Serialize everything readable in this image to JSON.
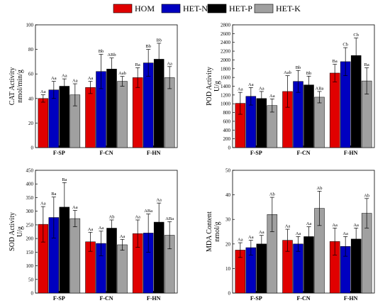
{
  "legend": [
    {
      "name": "HOM",
      "color": "#e00000"
    },
    {
      "name": "HET-N",
      "color": "#0000c0"
    },
    {
      "name": "HET-P",
      "color": "#000000"
    },
    {
      "name": "HET-K",
      "color": "#a0a0a0"
    }
  ],
  "chart_data": [
    {
      "type": "bar",
      "ylabel_lines": [
        "CAT Activity",
        "nmol/min/g"
      ],
      "categories": [
        "F-SP",
        "F-CN",
        "F-HN"
      ],
      "ylim": [
        0,
        100
      ],
      "yticks": [
        0,
        20,
        40,
        60,
        80,
        100
      ],
      "series": [
        {
          "name": "HOM",
          "values": [
            40,
            49,
            57
          ],
          "errors": [
            3,
            5,
            8
          ],
          "labels": [
            "Aa",
            "Aa",
            "Ba"
          ]
        },
        {
          "name": "HET-N",
          "values": [
            47,
            62,
            69
          ],
          "errors": [
            7,
            14,
            11
          ],
          "labels": [
            "Aa",
            "Bb",
            "Bb"
          ]
        },
        {
          "name": "HET-P",
          "values": [
            50,
            64,
            72
          ],
          "errors": [
            6,
            9,
            13
          ],
          "labels": [
            "Aa",
            "ABb",
            "Bb"
          ]
        },
        {
          "name": "HET-K",
          "values": [
            43,
            54,
            57
          ],
          "errors": [
            9,
            4,
            9
          ],
          "labels": [
            "Aa",
            "Aab",
            "Aa"
          ]
        }
      ]
    },
    {
      "type": "bar",
      "ylabel_lines": [
        "POD Activity",
        "U/g"
      ],
      "categories": [
        "F-SP",
        "F-CN",
        "F-HN"
      ],
      "ylim": [
        0,
        2800
      ],
      "yticks": [
        0,
        200,
        400,
        600,
        800,
        1000,
        1200,
        1400,
        1600,
        1800,
        2000,
        2200,
        2400,
        2600,
        2800
      ],
      "series": [
        {
          "name": "HOM",
          "values": [
            1010,
            1280,
            1700
          ],
          "errors": [
            250,
            360,
            200
          ],
          "labels": [
            "Aa",
            "Aab",
            "Ba"
          ]
        },
        {
          "name": "HET-N",
          "values": [
            1170,
            1510,
            1960
          ],
          "errors": [
            200,
            250,
            320
          ],
          "labels": [
            "Aa",
            "Bb",
            "Cb"
          ]
        },
        {
          "name": "HET-P",
          "values": [
            1120,
            1430,
            2100
          ],
          "errors": [
            160,
            200,
            400
          ],
          "labels": [
            "Aa",
            "Bb",
            "Cb"
          ]
        },
        {
          "name": "HET-K",
          "values": [
            960,
            1150,
            1520
          ],
          "errors": [
            150,
            130,
            300
          ],
          "labels": [
            "Aa",
            "ABa",
            "Ba"
          ]
        }
      ]
    },
    {
      "type": "bar",
      "ylabel_lines": [
        "SOD Activity",
        "U/g"
      ],
      "categories": [
        "F-SP",
        "F-CN",
        "F-HN"
      ],
      "ylim": [
        0,
        450
      ],
      "yticks": [
        0,
        50,
        100,
        150,
        200,
        250,
        300,
        350,
        400,
        450
      ],
      "series": [
        {
          "name": "HOM",
          "values": [
            252,
            188,
            218
          ],
          "errors": [
            65,
            35,
            50
          ],
          "labels": [
            "Aa",
            "Aa",
            "Aa"
          ]
        },
        {
          "name": "HET-N",
          "values": [
            277,
            182,
            220
          ],
          "errors": [
            75,
            45,
            70
          ],
          "labels": [
            "Ba",
            "Aa",
            "ABa"
          ]
        },
        {
          "name": "HET-P",
          "values": [
            315,
            238,
            260
          ],
          "errors": [
            90,
            30,
            70
          ],
          "labels": [
            "Ba",
            "Ab",
            "Aa"
          ]
        },
        {
          "name": "HET-K",
          "values": [
            273,
            177,
            212
          ],
          "errors": [
            30,
            20,
            50
          ],
          "labels": [
            "Aa",
            "Aa",
            "ABa"
          ]
        }
      ]
    },
    {
      "type": "bar",
      "ylabel_lines": [
        "MDA Content",
        "nmol/g"
      ],
      "categories": [
        "F-SP",
        "F-CN",
        "F-HN"
      ],
      "ylim": [
        0,
        50
      ],
      "yticks": [
        0,
        10,
        20,
        30,
        40,
        50
      ],
      "series": [
        {
          "name": "HOM",
          "values": [
            17.5,
            21.5,
            21
          ],
          "errors": [
            3,
            4.5,
            5.5
          ],
          "labels": [
            "Aa",
            "Aa",
            "Aa"
          ]
        },
        {
          "name": "HET-N",
          "values": [
            18.5,
            20,
            19
          ],
          "errors": [
            3,
            3,
            4
          ],
          "labels": [
            "Aa",
            "Aa",
            "Aa"
          ]
        },
        {
          "name": "HET-P",
          "values": [
            20,
            23,
            22
          ],
          "errors": [
            3.5,
            4,
            4.5
          ],
          "labels": [
            "Aa",
            "Aa",
            "Aa"
          ]
        },
        {
          "name": "HET-K",
          "values": [
            32,
            34.5,
            32.5
          ],
          "errors": [
            7,
            7,
            6
          ],
          "labels": [
            "Ab",
            "Ab",
            "Ab"
          ]
        }
      ]
    }
  ]
}
